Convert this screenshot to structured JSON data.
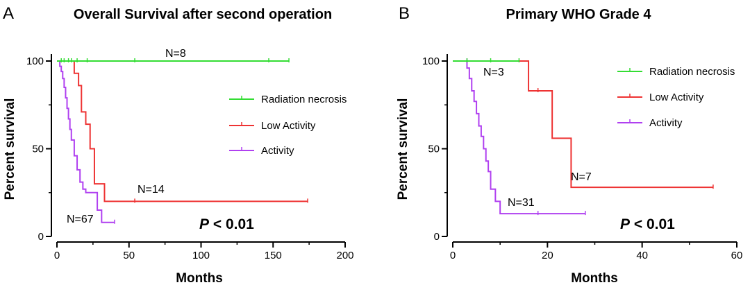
{
  "panels": [
    {
      "label": "A"
    },
    {
      "label": "B"
    }
  ],
  "colors": {
    "Radiation necrosis": "#33dd33",
    "Low Activity": "#ee3333",
    "Activity": "#b040f0"
  },
  "chart_data": [
    {
      "type": "line",
      "title": "Overall Survival after second operation",
      "xlabel": "Months",
      "ylabel": "Percent survival",
      "xlim": [
        0,
        200
      ],
      "ylim": [
        0,
        100
      ],
      "xticks": [
        "0",
        "50",
        "100",
        "150",
        "200"
      ],
      "yticks": [
        "0",
        "50",
        "100"
      ],
      "legend_position": "right",
      "p_value": "< 0.01",
      "series": [
        {
          "name": "Radiation necrosis",
          "label": "N=8",
          "x": [
            0,
            161
          ],
          "y": [
            100,
            100
          ],
          "censored": [
            [
              3,
              100
            ],
            [
              5,
              100
            ],
            [
              8,
              100
            ],
            [
              10,
              100
            ],
            [
              14,
              100
            ],
            [
              21,
              100
            ],
            [
              54,
              100
            ],
            [
              147,
              100
            ],
            [
              161,
              100
            ]
          ]
        },
        {
          "name": "Low Activity",
          "label": "N=14",
          "x": [
            0,
            12,
            15,
            17,
            20,
            23,
            26,
            33,
            174
          ],
          "y": [
            100,
            93,
            86,
            71,
            64,
            50,
            30,
            20,
            20
          ],
          "censored": [
            [
              54,
              20
            ],
            [
              174,
              20
            ]
          ]
        },
        {
          "name": "Activity",
          "label": "N=67",
          "x": [
            0,
            2,
            3,
            4,
            5,
            6,
            7,
            8,
            9,
            10,
            12,
            14,
            16,
            18,
            20,
            26,
            28,
            31,
            40
          ],
          "y": [
            100,
            97,
            94,
            90,
            85,
            79,
            73,
            67,
            61,
            55,
            46,
            38,
            31,
            27,
            25,
            25,
            15,
            8,
            8
          ],
          "censored": [
            [
              40,
              8
            ]
          ]
        }
      ]
    },
    {
      "type": "line",
      "title": "Primary WHO Grade 4",
      "xlabel": "Months",
      "ylabel": "Percent survival",
      "xlim": [
        0,
        60
      ],
      "ylim": [
        0,
        100
      ],
      "xticks": [
        "0",
        "20",
        "40",
        "60"
      ],
      "yticks": [
        "0",
        "50",
        "100"
      ],
      "legend_position": "top-right",
      "p_value": "< 0.01",
      "series": [
        {
          "name": "Radiation necrosis",
          "label": "N=3",
          "x": [
            0,
            14
          ],
          "y": [
            100,
            100
          ],
          "censored": [
            [
              3,
              100
            ],
            [
              8,
              100
            ],
            [
              14,
              100
            ]
          ]
        },
        {
          "name": "Low Activity",
          "label": "N=7",
          "x": [
            0,
            16,
            21,
            25,
            55
          ],
          "y": [
            100,
            83,
            56,
            28,
            28
          ],
          "censored": [
            [
              18,
              83
            ],
            [
              55,
              28
            ]
          ]
        },
        {
          "name": "Activity",
          "label": "N=31",
          "x": [
            0,
            3,
            3.5,
            4,
            4.5,
            5,
            5.5,
            6,
            6.5,
            7,
            7.5,
            8,
            9,
            10,
            28
          ],
          "y": [
            100,
            96,
            90,
            83,
            77,
            70,
            63,
            57,
            50,
            43,
            37,
            27,
            20,
            13,
            13
          ],
          "censored": [
            [
              3,
              100
            ],
            [
              18,
              13
            ],
            [
              28,
              13
            ]
          ]
        }
      ]
    }
  ]
}
